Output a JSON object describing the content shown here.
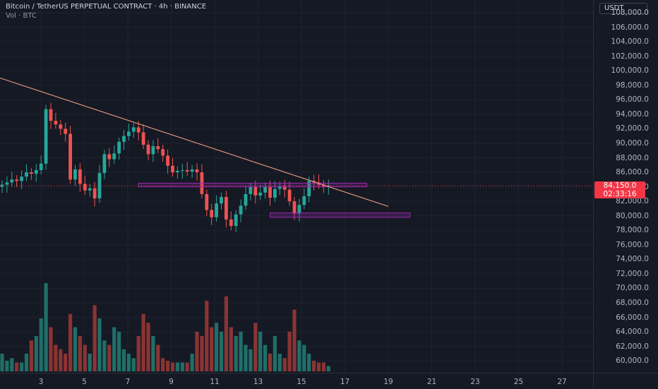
{
  "legend": {
    "symbol_line": "Bitcoin / TetherUS PERPETUAL CONTRACT · 4h · BINANCE",
    "volume_line": "Vol · BTC"
  },
  "price_axis": {
    "unit": "USDT",
    "ticks": [
      "108,000.0",
      "106,000.0",
      "104,000.0",
      "102,000.0",
      "100,000.0",
      "98,000.0",
      "96,000.0",
      "94,000.0",
      "92,000.0",
      "90,000.0",
      "88,000.0",
      "86,000.0",
      "84,000.0",
      "82,000.0",
      "80,000.0",
      "78,000.0",
      "76,000.0",
      "74,000.0",
      "72,000.0",
      "70,000.0",
      "68,000.0",
      "66,000.0",
      "64,000.0",
      "62,000.0",
      "60,000.0"
    ],
    "current_price": "84,150.0",
    "countdown": "02:33:16"
  },
  "time_axis": {
    "ticks": [
      "3",
      "5",
      "7",
      "9",
      "11",
      "13",
      "15",
      "17",
      "19",
      "21",
      "23",
      "25",
      "27"
    ]
  },
  "colors": {
    "background": "#151924",
    "up": "#26a69a",
    "down": "#ef5350",
    "trendline": "#f2a07a",
    "zone": "#9c27b0",
    "badge": "#f23645"
  },
  "chart_data": {
    "type": "candlestick",
    "symbol": "Bitcoin / TetherUS PERPETUAL CONTRACT",
    "interval": "4h",
    "exchange": "BINANCE",
    "ylim": [
      59000,
      109000
    ],
    "x_ticks": [
      "3",
      "5",
      "7",
      "9",
      "11",
      "13",
      "15",
      "17",
      "19",
      "21",
      "23",
      "25",
      "27"
    ],
    "last_price": 84150,
    "candles_close": [
      84300,
      84600,
      85000,
      84800,
      85400,
      86000,
      85800,
      86300,
      87200,
      94700,
      93100,
      92600,
      92000,
      91300,
      85000,
      86400,
      84400,
      83500,
      83800,
      82400,
      85900,
      88500,
      87800,
      88600,
      90200,
      91000,
      91600,
      92200,
      91500,
      89800,
      88500,
      89600,
      89200,
      88300,
      86900,
      86000,
      86200,
      86300,
      86100,
      86400,
      86000,
      83000,
      80800,
      79800,
      81700,
      82600,
      79500,
      78600,
      80200,
      81400,
      83000,
      84000,
      82800,
      83200,
      84000,
      82500,
      83700,
      84100,
      83600,
      82000,
      80300,
      81500,
      82700,
      84800,
      84600,
      84300,
      84000,
      84150
    ],
    "volume_relative": [
      0.2,
      0.12,
      0.15,
      0.1,
      0.1,
      0.2,
      0.35,
      0.4,
      0.6,
      1.0,
      0.5,
      0.3,
      0.25,
      0.2,
      0.65,
      0.5,
      0.4,
      0.3,
      0.2,
      0.75,
      0.6,
      0.35,
      0.3,
      0.5,
      0.45,
      0.25,
      0.2,
      0.15,
      0.4,
      0.65,
      0.55,
      0.4,
      0.3,
      0.15,
      0.12,
      0.1,
      0.1,
      0.1,
      0.1,
      0.2,
      0.45,
      0.4,
      0.8,
      0.5,
      0.55,
      0.45,
      0.85,
      0.5,
      0.4,
      0.45,
      0.3,
      0.25,
      0.55,
      0.45,
      0.3,
      0.2,
      0.4,
      0.2,
      0.15,
      0.45,
      0.7,
      0.35,
      0.3,
      0.2,
      0.12,
      0.1,
      0.1,
      0.06
    ],
    "trendline": {
      "from": [
        0,
        99000
      ],
      "to": [
        "19",
        81300
      ]
    },
    "zones": [
      {
        "price_low": 84000,
        "price_high": 84500,
        "from_index": 28,
        "to": "18"
      },
      {
        "price_low": 79800,
        "price_high": 80400,
        "from_index": 55,
        "to": "20"
      }
    ]
  }
}
